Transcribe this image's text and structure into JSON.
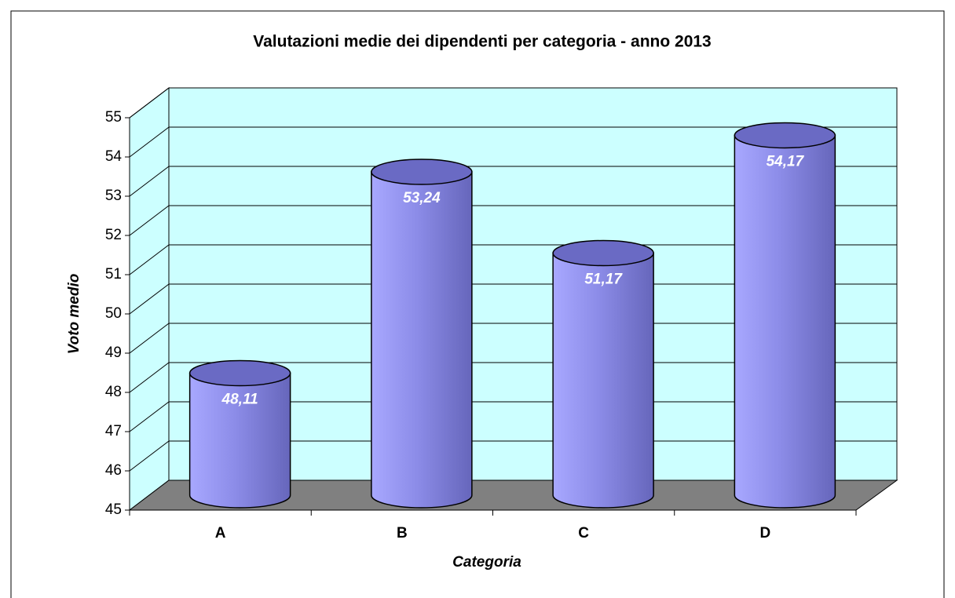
{
  "chart_data": {
    "type": "bar3d",
    "title": "Valutazioni medie dei dipendenti per categoria - anno 2013",
    "x_label": "Categoria",
    "y_label": "Voto medio",
    "categories": [
      "A",
      "B",
      "C",
      "D"
    ],
    "values": [
      48.11,
      53.24,
      51.17,
      54.17
    ],
    "value_labels": [
      "48,11",
      "53,24",
      "51,17",
      "54,17"
    ],
    "color": "#9999ff",
    "ylim": [
      45,
      55
    ],
    "yticks": [
      45,
      46,
      47,
      48,
      49,
      50,
      51,
      52,
      53,
      54,
      55
    ],
    "grid": true
  }
}
